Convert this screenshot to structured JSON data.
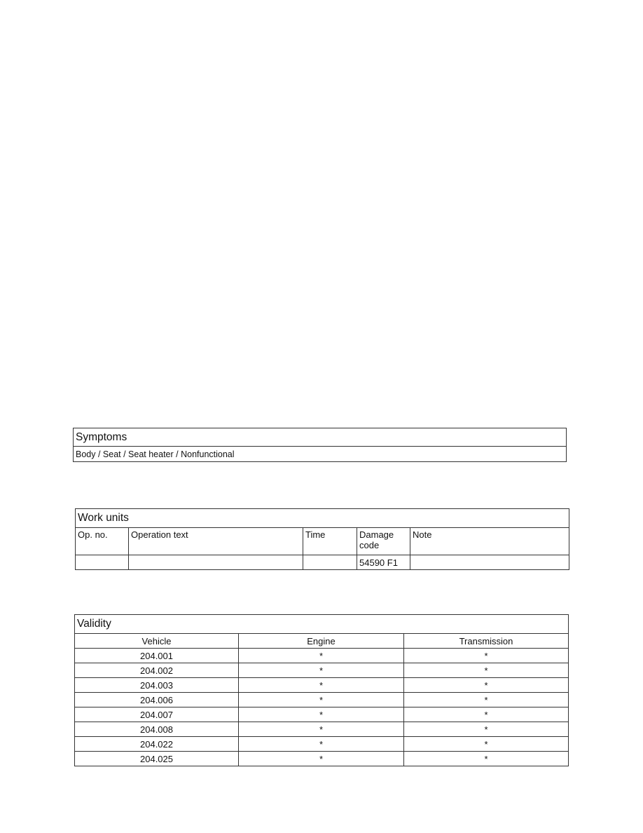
{
  "symptoms": {
    "title": "Symptoms",
    "value": "Body / Seat / Seat heater / Nonfunctional"
  },
  "work_units": {
    "title": "Work units",
    "headers": [
      "Op. no.",
      "Operation text",
      "Time",
      "Damage code",
      "Note"
    ],
    "rows": [
      [
        "",
        "",
        "",
        "54590 F1",
        ""
      ]
    ]
  },
  "validity": {
    "title": "Validity",
    "headers": [
      "Vehicle",
      "Engine",
      "Transmission"
    ],
    "rows": [
      [
        "204.001",
        "*",
        "*"
      ],
      [
        "204.002",
        "*",
        "*"
      ],
      [
        "204.003",
        "*",
        "*"
      ],
      [
        "204.006",
        "*",
        "*"
      ],
      [
        "204.007",
        "*",
        "*"
      ],
      [
        "204.008",
        "*",
        "*"
      ],
      [
        "204.022",
        "*",
        "*"
      ],
      [
        "204.025",
        "*",
        "*"
      ]
    ]
  }
}
